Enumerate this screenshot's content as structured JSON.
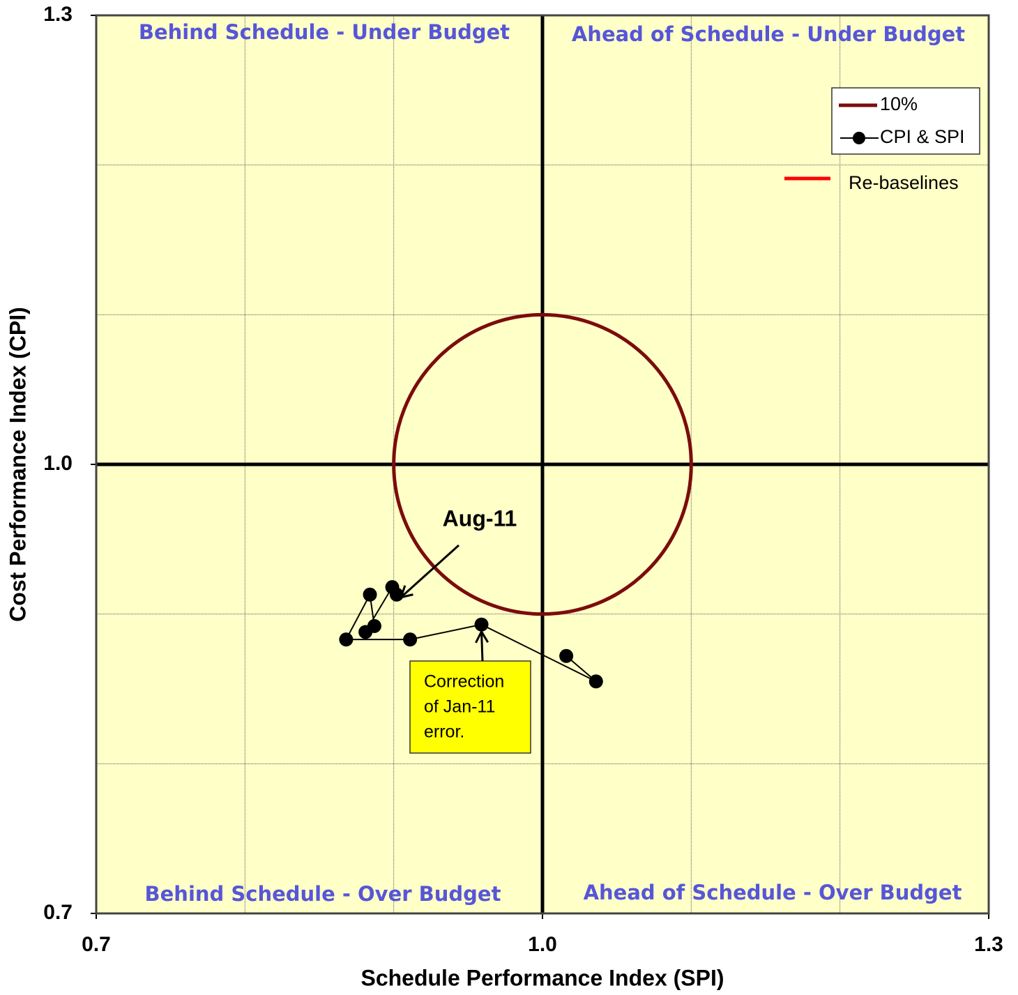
{
  "chart_data": {
    "type": "line",
    "x_label": "Schedule Performance Index (SPI)",
    "y_label": "Cost Performance Index (CPI)",
    "xlim": [
      0.7,
      1.3
    ],
    "ylim": [
      0.7,
      1.3
    ],
    "xticks": [
      0.7,
      {
        "value": 1,
        "label": "1.0"
      },
      1.3
    ],
    "yticks": [
      0.7,
      {
        "value": 1,
        "label": "1.0"
      },
      1.3
    ],
    "xticks_minor": [
      0.8,
      0.9,
      1.1,
      1.2
    ],
    "yticks_minor": [
      0.8,
      0.9,
      1.1,
      1.2
    ],
    "grid": true,
    "background": "#ffffc8",
    "quadrant_labels": [
      "Behind Schedule - Under Budget",
      "Ahead of Schedule - Under Budget",
      "Behind Schedule - Over Budget",
      "Ahead of Schedule - Over Budget"
    ],
    "circle": {
      "name": "10%",
      "center": [
        1,
        1
      ],
      "radius": 0.1,
      "color": "#7b0c0c"
    },
    "series": [
      {
        "name": "CPI & SPI",
        "color": "#000000",
        "x": [
          1.016,
          1.036,
          0.959,
          0.911,
          0.868,
          0.884,
          0.887,
          0.881,
          0.899,
          0.902
        ],
        "values": [
          0.872,
          0.855,
          0.893,
          0.883,
          0.883,
          0.913,
          0.892,
          0.888,
          0.918,
          0.913
        ]
      }
    ],
    "rebaseline": {
      "name": "Re-baselines",
      "color": "#ff0000"
    },
    "annotations": [
      {
        "text": "Aug-11"
      },
      {
        "lines": [
          "Correction",
          "of Jan-11",
          "error."
        ]
      }
    ]
  }
}
